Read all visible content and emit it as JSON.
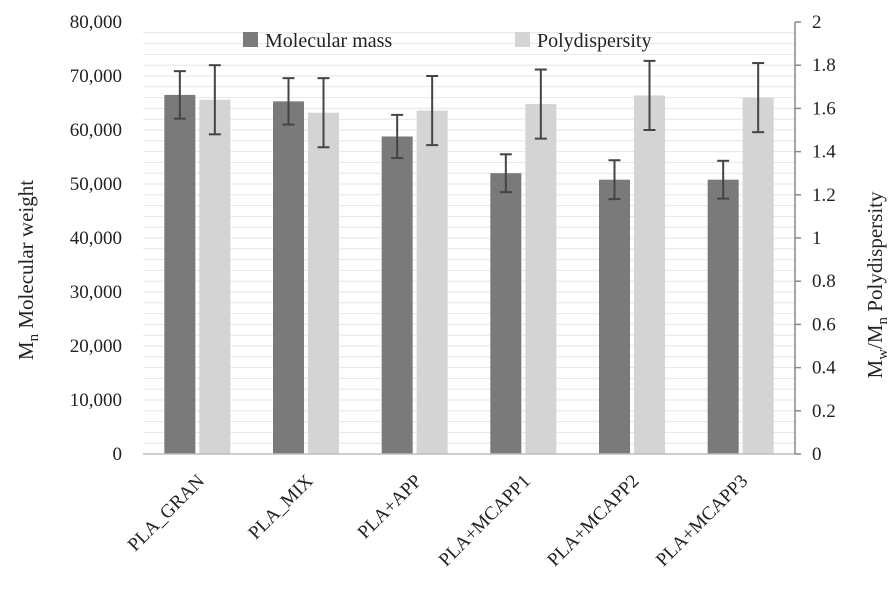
{
  "chart_data": {
    "type": "bar",
    "categories": [
      "PLA_GRAN",
      "PLA_MIX",
      "PLA+APP",
      "PLA+MCAPP1",
      "PLA+MCAPP2",
      "PLA+MCAPP3"
    ],
    "series": [
      {
        "name": "Molecular mass",
        "axis": "left",
        "color": "#7a7a7a",
        "values": [
          66500,
          65300,
          58800,
          52000,
          50800,
          50800
        ],
        "errors": [
          4400,
          4300,
          4000,
          3500,
          3600,
          3500
        ]
      },
      {
        "name": "Polydispersity",
        "axis": "right",
        "color": "#d4d4d4",
        "values": [
          1.64,
          1.58,
          1.59,
          1.62,
          1.66,
          1.65
        ],
        "errors": [
          0.16,
          0.16,
          0.16,
          0.16,
          0.16,
          0.16
        ]
      }
    ],
    "y_left": {
      "label_main": "M",
      "label_sub": "n",
      "label_rest": " Molecular weight",
      "ylim": [
        0,
        80000
      ],
      "ticks": [
        "0",
        "10,000",
        "20,000",
        "30,000",
        "40,000",
        "50,000",
        "60,000",
        "70,000",
        "80,000"
      ]
    },
    "y_right": {
      "label_m1": "M",
      "label_sub1": "w",
      "label_slash": "/M",
      "label_sub2": "n",
      "label_rest": "  Polydispersity",
      "ylim": [
        0,
        2
      ],
      "ticks": [
        "0",
        "0.2",
        "0.4",
        "0.6",
        "0.8",
        "1",
        "1.2",
        "1.4",
        "1.6",
        "1.8",
        "2"
      ]
    },
    "grid": true,
    "legend": "top"
  }
}
